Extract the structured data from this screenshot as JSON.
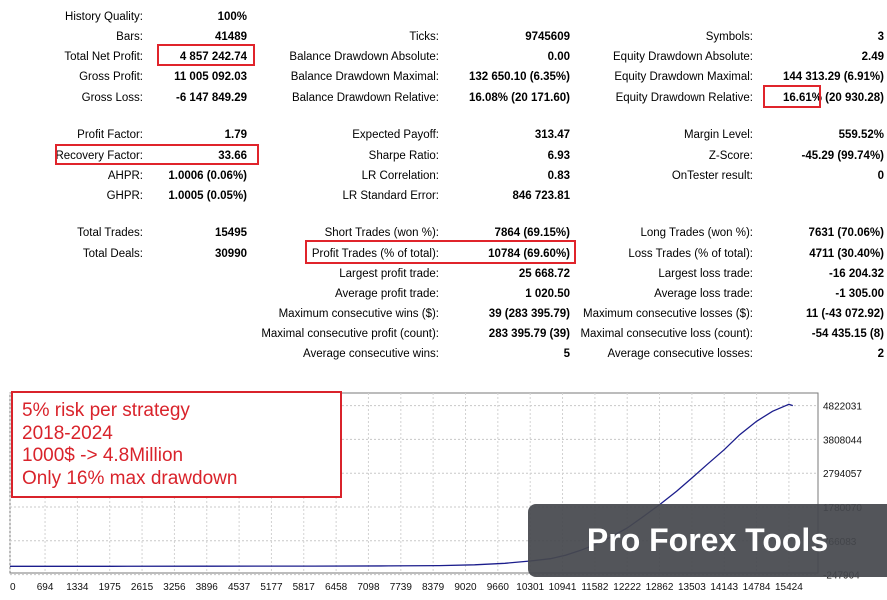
{
  "report": {
    "rows": [
      {
        "label": "History Quality:",
        "value": "100%"
      },
      {
        "label": "Bars:",
        "value": "41489"
      },
      {
        "label": "Total Net Profit:",
        "value": "4 857 242.74",
        "highlight": true
      },
      {
        "label": "Gross Profit:",
        "value": "11 005 092.03"
      },
      {
        "label": "Gross Loss:",
        "value": "-6 147 849.29"
      },
      {
        "label": "Ticks:",
        "value": "9745609"
      },
      {
        "label": "Balance Drawdown Absolute:",
        "value": "0.00"
      },
      {
        "label": "Balance Drawdown Maximal:",
        "value": "132 650.10 (6.35%)"
      },
      {
        "label": "Balance Drawdown Relative:",
        "value": "16.08% (20 171.60)"
      },
      {
        "label": "Symbols:",
        "value": "3"
      },
      {
        "label": "Equity Drawdown Absolute:",
        "value": "2.49"
      },
      {
        "label": "Equity Drawdown Maximal:",
        "value": "144 313.29 (6.91%)"
      },
      {
        "label": "Equity Drawdown Relative:",
        "value": "16.61% (20 930.28)",
        "highlight": true
      },
      {
        "label": "Profit Factor:",
        "value": "1.79"
      },
      {
        "label": "Recovery Factor:",
        "value": "33.66",
        "highlight": true
      },
      {
        "label": "AHPR:",
        "value": "1.0006 (0.06%)"
      },
      {
        "label": "GHPR:",
        "value": "1.0005 (0.05%)"
      },
      {
        "label": "Expected Payoff:",
        "value": "313.47"
      },
      {
        "label": "Sharpe Ratio:",
        "value": "6.93"
      },
      {
        "label": "LR Correlation:",
        "value": "0.83"
      },
      {
        "label": "LR Standard Error:",
        "value": "846 723.81"
      },
      {
        "label": "Margin Level:",
        "value": "559.52%"
      },
      {
        "label": "Z-Score:",
        "value": "-45.29 (99.74%)"
      },
      {
        "label": "OnTester result:",
        "value": "0"
      },
      {
        "label": "Total Trades:",
        "value": "15495"
      },
      {
        "label": "Total Deals:",
        "value": "30990"
      },
      {
        "label": "Short Trades (won %):",
        "value": "7864 (69.15%)"
      },
      {
        "label": "Profit Trades (% of total):",
        "value": "10784 (69.60%)",
        "highlight": true
      },
      {
        "label": "Largest profit trade:",
        "value": "25 668.72"
      },
      {
        "label": "Average profit trade:",
        "value": "1 020.50"
      },
      {
        "label": "Maximum consecutive wins ($):",
        "value": "39 (283 395.79)"
      },
      {
        "label": "Maximal consecutive profit (count):",
        "value": "283 395.79 (39)"
      },
      {
        "label": "Average consecutive wins:",
        "value": "5"
      },
      {
        "label": "Long Trades (won %):",
        "value": "7631 (70.06%)"
      },
      {
        "label": "Loss Trades (% of total):",
        "value": "4711 (30.40%)"
      },
      {
        "label": "Largest loss trade:",
        "value": "-16 204.32"
      },
      {
        "label": "Average loss trade:",
        "value": "-1 305.00"
      },
      {
        "label": "Maximum consecutive losses ($):",
        "value": "11 (-43 072.92)"
      },
      {
        "label": "Maximal consecutive loss (count):",
        "value": "-54 435.15 (8)"
      },
      {
        "label": "Average consecutive losses:",
        "value": "2"
      }
    ]
  },
  "annotation": {
    "lines": [
      "5% risk per strategy",
      "2018-2024",
      "1000$ -> 4.8Million",
      "Only 16% max drawdown"
    ],
    "color": "#d9232b"
  },
  "watermark": {
    "text": "Pro Forex Tools"
  },
  "colors": {
    "highlight": "#e0242b",
    "curve": "#1b1d8c"
  },
  "chart_data": {
    "type": "line",
    "title": "",
    "xlabel": "",
    "ylabel": "",
    "xlim": [
      0,
      16000
    ],
    "ylim": [
      -200000,
      5200000
    ],
    "x_ticks": [
      "0",
      "694",
      "1334",
      "1975",
      "2615",
      "3256",
      "3896",
      "4537",
      "5177",
      "5817",
      "6458",
      "7098",
      "7739",
      "8379",
      "9020",
      "9660",
      "10301",
      "10941",
      "11582",
      "12222",
      "12862",
      "13503",
      "14143",
      "14784",
      "15424"
    ],
    "y_ticks": [
      "4822031",
      "3808044",
      "2794057",
      "1780070",
      "766083",
      "-247904"
    ],
    "series": [
      {
        "x": [
          0,
          2000,
          4000,
          6000,
          7500,
          8500,
          9200,
          9800,
          10301,
          10700,
          11000,
          11300,
          11582,
          11900,
          12222,
          12500,
          12862,
          13200,
          13503,
          13800,
          14143,
          14450,
          14784,
          15100,
          15424,
          15500
        ],
        "values": [
          1000,
          1500,
          3000,
          6000,
          12000,
          22000,
          45000,
          90000,
          160000,
          230000,
          330000,
          480000,
          650000,
          880000,
          1150000,
          1450000,
          1850000,
          2250000,
          2650000,
          3050000,
          3500000,
          3950000,
          4350000,
          4650000,
          4860000,
          4822031
        ]
      }
    ]
  }
}
